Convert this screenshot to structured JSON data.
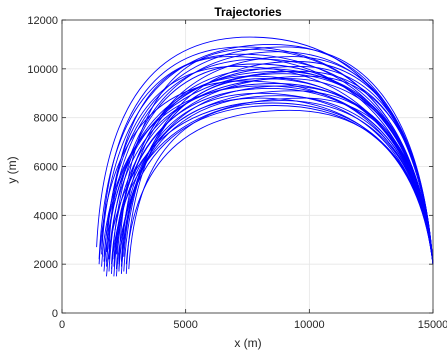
{
  "colors": {
    "trajectory": "#0000ff",
    "grid": "#e6e6e6",
    "axis": "#262626",
    "background": "#ffffff"
  },
  "chart_data": {
    "type": "line",
    "title": "Trajectories",
    "xlabel": "x (m)",
    "ylabel": "y (m)",
    "xlim": [
      0,
      15000
    ],
    "ylim": [
      0,
      12000
    ],
    "xticks": [
      0,
      5000,
      10000,
      15000
    ],
    "xtick_labels": [
      "0",
      "5000",
      "10000",
      "15000"
    ],
    "yticks": [
      0,
      2000,
      4000,
      6000,
      8000,
      10000,
      12000
    ],
    "ytick_labels": [
      "0",
      "2000",
      "4000",
      "6000",
      "8000",
      "10000",
      "12000"
    ],
    "grid": true,
    "common_end": [
      15000,
      2000
    ],
    "series": [
      {
        "x0": 1400,
        "y0": 2700,
        "apex_x": 7600,
        "apex_y": 11300
      },
      {
        "x0": 1600,
        "y0": 2400,
        "apex_x": 8500,
        "apex_y": 11000
      },
      {
        "x0": 1500,
        "y0": 2200,
        "apex_x": 7200,
        "apex_y": 10600
      },
      {
        "x0": 1700,
        "y0": 2100,
        "apex_x": 9000,
        "apex_y": 10900
      },
      {
        "x0": 1800,
        "y0": 1900,
        "apex_x": 8000,
        "apex_y": 10400
      },
      {
        "x0": 1900,
        "y0": 1700,
        "apex_x": 8800,
        "apex_y": 10700
      },
      {
        "x0": 2000,
        "y0": 1600,
        "apex_x": 7800,
        "apex_y": 10200
      },
      {
        "x0": 2100,
        "y0": 1500,
        "apex_x": 9300,
        "apex_y": 10500
      },
      {
        "x0": 2200,
        "y0": 1800,
        "apex_x": 8300,
        "apex_y": 10000
      },
      {
        "x0": 2300,
        "y0": 2000,
        "apex_x": 7500,
        "apex_y": 10800
      },
      {
        "x0": 2400,
        "y0": 1600,
        "apex_x": 8900,
        "apex_y": 9800
      },
      {
        "x0": 2500,
        "y0": 1700,
        "apex_x": 9500,
        "apex_y": 10300
      },
      {
        "x0": 2600,
        "y0": 1600,
        "apex_x": 8100,
        "apex_y": 9600
      },
      {
        "x0": 1700,
        "y0": 2300,
        "apex_x": 9700,
        "apex_y": 9900
      },
      {
        "x0": 1800,
        "y0": 2500,
        "apex_x": 7000,
        "apex_y": 10100
      },
      {
        "x0": 1900,
        "y0": 2200,
        "apex_x": 8600,
        "apex_y": 9400
      },
      {
        "x0": 2000,
        "y0": 2000,
        "apex_x": 9100,
        "apex_y": 9600
      },
      {
        "x0": 2100,
        "y0": 1900,
        "apex_x": 8400,
        "apex_y": 9200
      },
      {
        "x0": 2200,
        "y0": 2400,
        "apex_x": 9400,
        "apex_y": 9100
      },
      {
        "x0": 2300,
        "y0": 1800,
        "apex_x": 8700,
        "apex_y": 8900
      },
      {
        "x0": 2400,
        "y0": 2100,
        "apex_x": 7700,
        "apex_y": 9700
      },
      {
        "x0": 1600,
        "y0": 1900,
        "apex_x": 8200,
        "apex_y": 9300
      },
      {
        "x0": 1800,
        "y0": 1500,
        "apex_x": 8900,
        "apex_y": 8700
      },
      {
        "x0": 2000,
        "y0": 1800,
        "apex_x": 9800,
        "apex_y": 8800
      },
      {
        "x0": 2200,
        "y0": 1500,
        "apex_x": 8600,
        "apex_y": 8500
      },
      {
        "x0": 2400,
        "y0": 1900,
        "apex_x": 7900,
        "apex_y": 8800
      },
      {
        "x0": 2600,
        "y0": 2000,
        "apex_x": 9200,
        "apex_y": 8300
      },
      {
        "x0": 1500,
        "y0": 2000,
        "apex_x": 7400,
        "apex_y": 9500
      },
      {
        "x0": 1700,
        "y0": 1700,
        "apex_x": 9600,
        "apex_y": 10100
      },
      {
        "x0": 1900,
        "y0": 2600,
        "apex_x": 6800,
        "apex_y": 10500
      },
      {
        "x0": 2100,
        "y0": 2200,
        "apex_x": 10000,
        "apex_y": 9700
      },
      {
        "x0": 2300,
        "y0": 1700,
        "apex_x": 8000,
        "apex_y": 9000
      },
      {
        "x0": 2500,
        "y0": 2300,
        "apex_x": 9000,
        "apex_y": 9300
      },
      {
        "x0": 2700,
        "y0": 1800,
        "apex_x": 8500,
        "apex_y": 8600
      },
      {
        "x0": 1600,
        "y0": 2600,
        "apex_x": 7300,
        "apex_y": 10900
      },
      {
        "x0": 1800,
        "y0": 2100,
        "apex_x": 8800,
        "apex_y": 9900
      }
    ]
  }
}
